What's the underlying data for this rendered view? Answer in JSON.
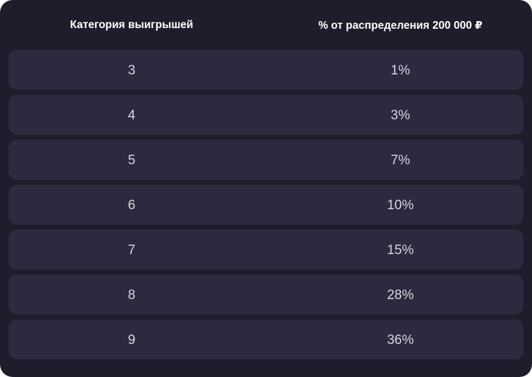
{
  "table": {
    "headers": [
      "Категория выигрышей",
      "% от распределения 200 000 ₽"
    ],
    "rows": [
      [
        "3",
        "1%"
      ],
      [
        "4",
        "3%"
      ],
      [
        "5",
        "7%"
      ],
      [
        "6",
        "10%"
      ],
      [
        "7",
        "15%"
      ],
      [
        "8",
        "28%"
      ],
      [
        "9",
        "36%"
      ]
    ]
  },
  "colors": {
    "background": "#1e1d2b",
    "row": "#2b2a3e",
    "text": "#d6d6de"
  }
}
